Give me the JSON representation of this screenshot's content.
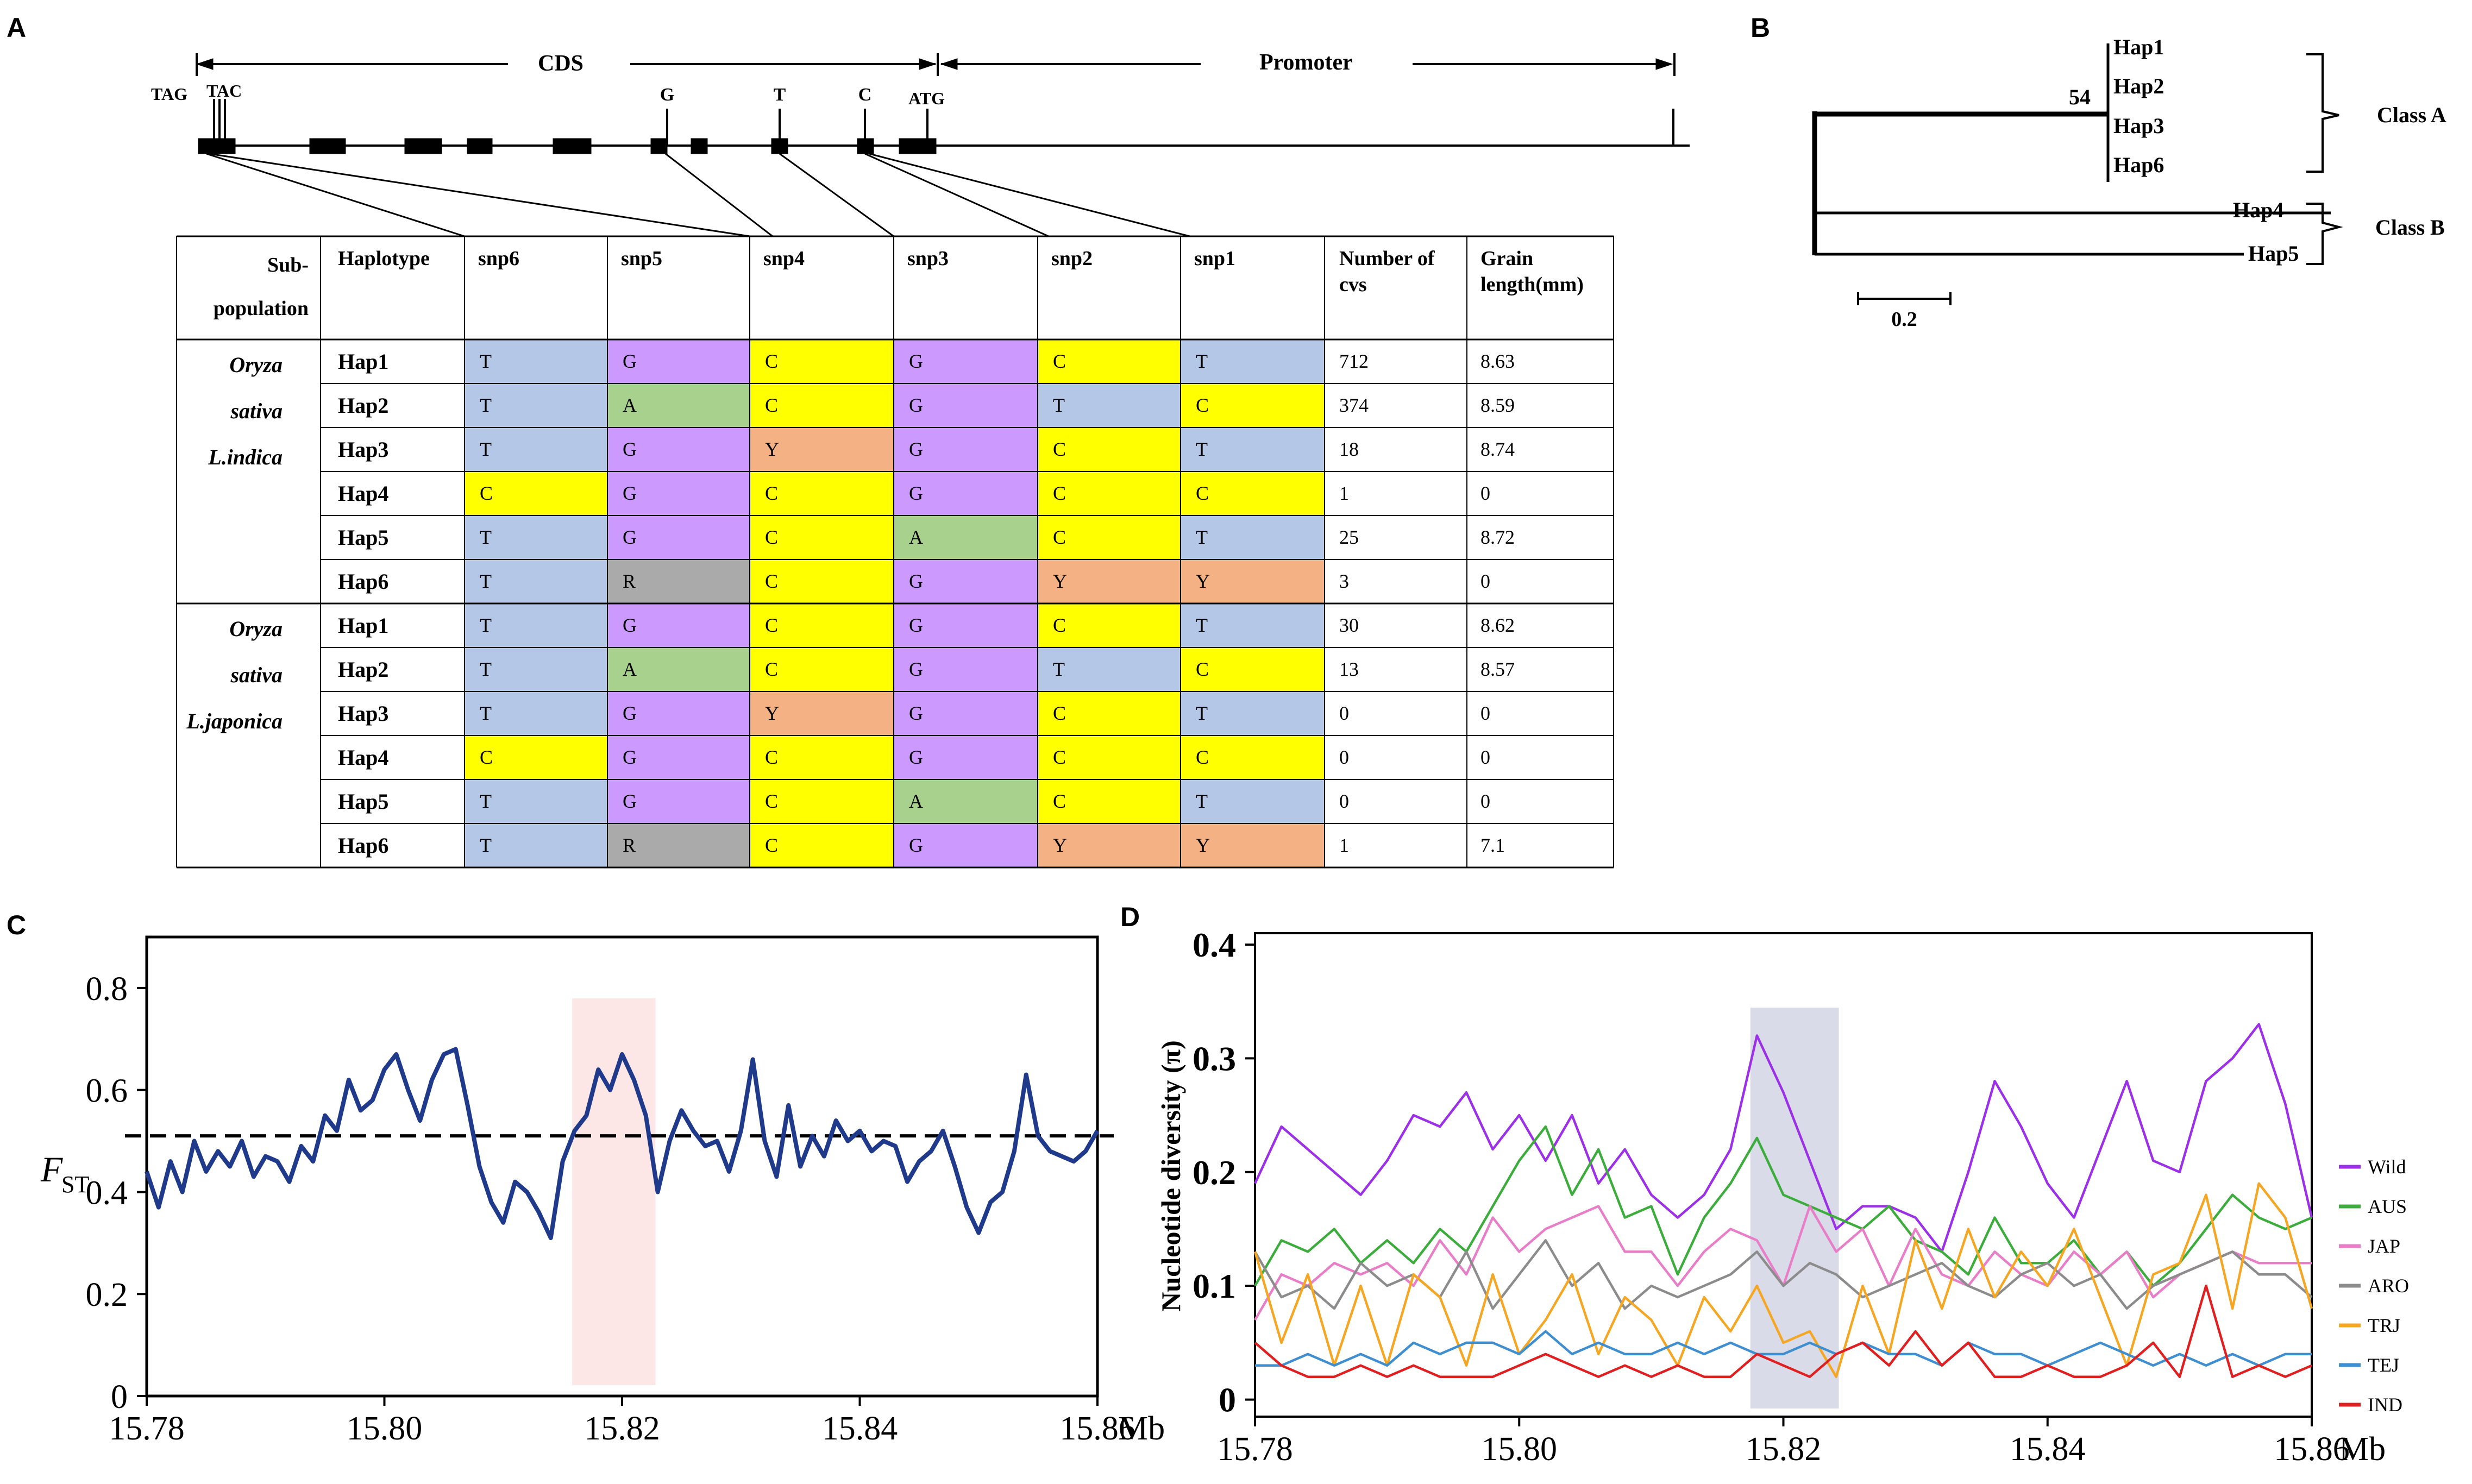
{
  "panels": {
    "A": "A",
    "B": "B",
    "C": "C",
    "D": "D"
  },
  "gene": {
    "cds_label": "CDS",
    "promoter_label": "Promoter",
    "tag": "TAG",
    "tac": "TAC",
    "atg": "ATG",
    "snp_letters": [
      "G",
      "T",
      "C"
    ]
  },
  "hap_table": {
    "headers": [
      "Sub-population",
      "Haplotype",
      "snp6",
      "snp5",
      "snp4",
      "snp3",
      "snp2",
      "snp1",
      "Number of cvs",
      "Grain length(mm)"
    ],
    "header_lines": {
      "subpop": [
        "Sub-",
        "population"
      ],
      "number": [
        "Number of",
        "cvs"
      ],
      "grain": [
        "Grain",
        "length(mm)"
      ]
    },
    "groups": [
      {
        "name_lines": [
          "Oryza",
          "sativa",
          "L.indica"
        ],
        "rows": [
          {
            "hap": "Hap1",
            "snps": [
              "T",
              "G",
              "C",
              "G",
              "C",
              "T"
            ],
            "cvs": "712",
            "length": "8.63"
          },
          {
            "hap": "Hap2",
            "snps": [
              "T",
              "A",
              "C",
              "G",
              "T",
              "C"
            ],
            "cvs": "374",
            "length": "8.59"
          },
          {
            "hap": "Hap3",
            "snps": [
              "T",
              "G",
              "Y",
              "G",
              "C",
              "T"
            ],
            "cvs": "18",
            "length": "8.74"
          },
          {
            "hap": "Hap4",
            "snps": [
              "C",
              "G",
              "C",
              "G",
              "C",
              "C"
            ],
            "cvs": "1",
            "length": "0"
          },
          {
            "hap": "Hap5",
            "snps": [
              "T",
              "G",
              "C",
              "A",
              "C",
              "T"
            ],
            "cvs": "25",
            "length": "8.72"
          },
          {
            "hap": "Hap6",
            "snps": [
              "T",
              "R",
              "C",
              "G",
              "Y",
              "Y"
            ],
            "cvs": "3",
            "length": "0"
          }
        ]
      },
      {
        "name_lines": [
          "Oryza",
          "sativa",
          "L.japonica"
        ],
        "rows": [
          {
            "hap": "Hap1",
            "snps": [
              "T",
              "G",
              "C",
              "G",
              "C",
              "T"
            ],
            "cvs": "30",
            "length": "8.62"
          },
          {
            "hap": "Hap2",
            "snps": [
              "T",
              "A",
              "C",
              "G",
              "T",
              "C"
            ],
            "cvs": "13",
            "length": "8.57"
          },
          {
            "hap": "Hap3",
            "snps": [
              "T",
              "G",
              "Y",
              "G",
              "C",
              "T"
            ],
            "cvs": "0",
            "length": "0"
          },
          {
            "hap": "Hap4",
            "snps": [
              "C",
              "G",
              "C",
              "G",
              "C",
              "C"
            ],
            "cvs": "0",
            "length": "0"
          },
          {
            "hap": "Hap5",
            "snps": [
              "T",
              "G",
              "C",
              "A",
              "C",
              "T"
            ],
            "cvs": "0",
            "length": "0"
          },
          {
            "hap": "Hap6",
            "snps": [
              "T",
              "R",
              "C",
              "G",
              "Y",
              "Y"
            ],
            "cvs": "1",
            "length": "7.1"
          }
        ]
      }
    ],
    "base_colors": {
      "T": "#b4c7e7",
      "C": "#ffff00",
      "G": "#cc99ff",
      "A": "#a9d18e",
      "Y": "#f4b183",
      "R": "#aaaaaa"
    }
  },
  "tree": {
    "haps_a": [
      "Hap1",
      "Hap2",
      "Hap3",
      "Hap6"
    ],
    "hap4": "Hap4",
    "hap5": "Hap5",
    "bootstrap": "54",
    "class_a": "Class A",
    "class_b": "Class B",
    "scale_label": "0.2"
  },
  "chart_data": [
    {
      "type": "line",
      "panel": "C",
      "ylabel": "F",
      "ylabel_sub": "ST",
      "x_unit": "Mb",
      "xlim": [
        15.78,
        15.86
      ],
      "ylim": [
        0,
        0.9
      ],
      "xticks": [
        15.78,
        15.8,
        15.82,
        15.84,
        15.86
      ],
      "xtick_labels": [
        "15.78",
        "15.80",
        "15.82",
        "15.84",
        "15.86"
      ],
      "yticks": [
        0,
        0.2,
        0.4,
        0.6,
        0.8
      ],
      "ytick_labels": [
        "0",
        "0.2",
        "0.4",
        "0.6",
        "0.8"
      ],
      "threshold": 0.51,
      "highlight": [
        15.8158,
        15.8228
      ],
      "line_color": "#1f3a8a",
      "highlight_color": "#fde6e6",
      "x": [
        15.78,
        15.781,
        15.782,
        15.783,
        15.784,
        15.785,
        15.786,
        15.787,
        15.788,
        15.789,
        15.79,
        15.791,
        15.792,
        15.793,
        15.794,
        15.795,
        15.796,
        15.797,
        15.798,
        15.799,
        15.8,
        15.801,
        15.802,
        15.803,
        15.804,
        15.805,
        15.806,
        15.807,
        15.808,
        15.809,
        15.81,
        15.811,
        15.812,
        15.813,
        15.814,
        15.815,
        15.816,
        15.817,
        15.818,
        15.819,
        15.82,
        15.821,
        15.822,
        15.823,
        15.824,
        15.825,
        15.826,
        15.827,
        15.828,
        15.829,
        15.83,
        15.831,
        15.832,
        15.833,
        15.834,
        15.835,
        15.836,
        15.837,
        15.838,
        15.839,
        15.84,
        15.841,
        15.842,
        15.843,
        15.844,
        15.845,
        15.846,
        15.847,
        15.848,
        15.849,
        15.85,
        15.851,
        15.852,
        15.853,
        15.854,
        15.855,
        15.856,
        15.857,
        15.858,
        15.859,
        15.86
      ],
      "y": [
        0.44,
        0.37,
        0.46,
        0.4,
        0.5,
        0.44,
        0.48,
        0.45,
        0.5,
        0.43,
        0.47,
        0.46,
        0.42,
        0.49,
        0.46,
        0.55,
        0.52,
        0.62,
        0.56,
        0.58,
        0.64,
        0.67,
        0.6,
        0.54,
        0.62,
        0.67,
        0.68,
        0.57,
        0.45,
        0.38,
        0.34,
        0.42,
        0.4,
        0.36,
        0.31,
        0.46,
        0.52,
        0.55,
        0.64,
        0.6,
        0.67,
        0.62,
        0.55,
        0.4,
        0.5,
        0.56,
        0.52,
        0.49,
        0.5,
        0.44,
        0.52,
        0.66,
        0.5,
        0.43,
        0.57,
        0.45,
        0.51,
        0.47,
        0.54,
        0.5,
        0.52,
        0.48,
        0.5,
        0.49,
        0.42,
        0.46,
        0.48,
        0.52,
        0.45,
        0.37,
        0.32,
        0.38,
        0.4,
        0.48,
        0.63,
        0.51,
        0.48,
        0.47,
        0.46,
        0.48,
        0.52
      ]
    },
    {
      "type": "line",
      "panel": "D",
      "ylabel": "Nucleotide diversity (π)",
      "x_unit": "Mb",
      "xlim": [
        15.78,
        15.86
      ],
      "ylim": [
        -0.015,
        0.41
      ],
      "xticks": [
        15.78,
        15.8,
        15.82,
        15.84,
        15.86
      ],
      "xtick_labels": [
        "15.78",
        "15.80",
        "15.82",
        "15.84",
        "15.86"
      ],
      "yticks": [
        0,
        0.1,
        0.2,
        0.3,
        0.4
      ],
      "ytick_labels": [
        "0",
        "0.1",
        "0.2",
        "0.3",
        "0.4"
      ],
      "highlight": [
        15.8175,
        15.8242
      ],
      "highlight_color": "#d9dce8",
      "x": [
        15.78,
        15.782,
        15.784,
        15.786,
        15.788,
        15.79,
        15.792,
        15.794,
        15.796,
        15.798,
        15.8,
        15.802,
        15.804,
        15.806,
        15.808,
        15.81,
        15.812,
        15.814,
        15.816,
        15.818,
        15.82,
        15.822,
        15.824,
        15.826,
        15.828,
        15.83,
        15.832,
        15.834,
        15.836,
        15.838,
        15.84,
        15.842,
        15.844,
        15.846,
        15.848,
        15.85,
        15.852,
        15.854,
        15.856,
        15.858,
        15.86
      ],
      "series": [
        {
          "name": "Wild",
          "color": "#9b30e8",
          "values": [
            0.19,
            0.24,
            0.22,
            0.2,
            0.18,
            0.21,
            0.25,
            0.24,
            0.27,
            0.22,
            0.25,
            0.21,
            0.25,
            0.19,
            0.22,
            0.18,
            0.16,
            0.18,
            0.22,
            0.32,
            0.27,
            0.21,
            0.15,
            0.17,
            0.17,
            0.16,
            0.13,
            0.2,
            0.28,
            0.24,
            0.19,
            0.16,
            0.22,
            0.28,
            0.21,
            0.2,
            0.28,
            0.3,
            0.33,
            0.26,
            0.16
          ]
        },
        {
          "name": "AUS",
          "color": "#3cad3c",
          "values": [
            0.1,
            0.14,
            0.13,
            0.15,
            0.12,
            0.14,
            0.12,
            0.15,
            0.13,
            0.17,
            0.21,
            0.24,
            0.18,
            0.22,
            0.16,
            0.17,
            0.11,
            0.16,
            0.19,
            0.23,
            0.18,
            0.17,
            0.16,
            0.15,
            0.17,
            0.14,
            0.13,
            0.11,
            0.16,
            0.12,
            0.12,
            0.14,
            0.11,
            0.13,
            0.1,
            0.12,
            0.15,
            0.18,
            0.16,
            0.15,
            0.16
          ]
        },
        {
          "name": "JAP",
          "color": "#e87ec8",
          "values": [
            0.07,
            0.11,
            0.1,
            0.12,
            0.11,
            0.12,
            0.1,
            0.14,
            0.11,
            0.16,
            0.13,
            0.15,
            0.16,
            0.17,
            0.13,
            0.13,
            0.1,
            0.13,
            0.15,
            0.14,
            0.1,
            0.17,
            0.13,
            0.15,
            0.1,
            0.15,
            0.11,
            0.1,
            0.13,
            0.11,
            0.1,
            0.13,
            0.11,
            0.13,
            0.09,
            0.11,
            0.12,
            0.13,
            0.12,
            0.12,
            0.12
          ]
        },
        {
          "name": "ARO",
          "color": "#8c8c8c",
          "values": [
            0.13,
            0.09,
            0.1,
            0.08,
            0.12,
            0.1,
            0.11,
            0.09,
            0.13,
            0.08,
            0.11,
            0.14,
            0.1,
            0.12,
            0.08,
            0.1,
            0.09,
            0.1,
            0.11,
            0.13,
            0.1,
            0.12,
            0.11,
            0.09,
            0.1,
            0.11,
            0.12,
            0.1,
            0.09,
            0.11,
            0.12,
            0.1,
            0.11,
            0.08,
            0.1,
            0.11,
            0.12,
            0.13,
            0.11,
            0.11,
            0.09
          ]
        },
        {
          "name": "TRJ",
          "color": "#f5a623",
          "values": [
            0.13,
            0.05,
            0.11,
            0.03,
            0.1,
            0.03,
            0.11,
            0.09,
            0.03,
            0.11,
            0.04,
            0.07,
            0.11,
            0.04,
            0.09,
            0.07,
            0.03,
            0.09,
            0.06,
            0.1,
            0.05,
            0.06,
            0.02,
            0.1,
            0.04,
            0.14,
            0.08,
            0.15,
            0.09,
            0.13,
            0.1,
            0.15,
            0.09,
            0.03,
            0.11,
            0.12,
            0.18,
            0.08,
            0.19,
            0.16,
            0.08
          ]
        },
        {
          "name": "TEJ",
          "color": "#3e8ed0",
          "values": [
            0.03,
            0.03,
            0.04,
            0.03,
            0.04,
            0.03,
            0.05,
            0.04,
            0.05,
            0.05,
            0.04,
            0.06,
            0.04,
            0.05,
            0.04,
            0.04,
            0.05,
            0.04,
            0.05,
            0.04,
            0.04,
            0.05,
            0.04,
            0.05,
            0.04,
            0.04,
            0.03,
            0.05,
            0.04,
            0.04,
            0.03,
            0.04,
            0.05,
            0.04,
            0.03,
            0.04,
            0.03,
            0.04,
            0.03,
            0.04,
            0.04
          ]
        },
        {
          "name": "IND",
          "color": "#e02020",
          "values": [
            0.05,
            0.03,
            0.02,
            0.02,
            0.03,
            0.02,
            0.03,
            0.02,
            0.02,
            0.02,
            0.03,
            0.04,
            0.03,
            0.02,
            0.03,
            0.02,
            0.03,
            0.02,
            0.02,
            0.04,
            0.03,
            0.02,
            0.04,
            0.05,
            0.03,
            0.06,
            0.03,
            0.05,
            0.02,
            0.02,
            0.03,
            0.02,
            0.02,
            0.03,
            0.05,
            0.02,
            0.1,
            0.02,
            0.03,
            0.02,
            0.03
          ]
        }
      ]
    }
  ]
}
